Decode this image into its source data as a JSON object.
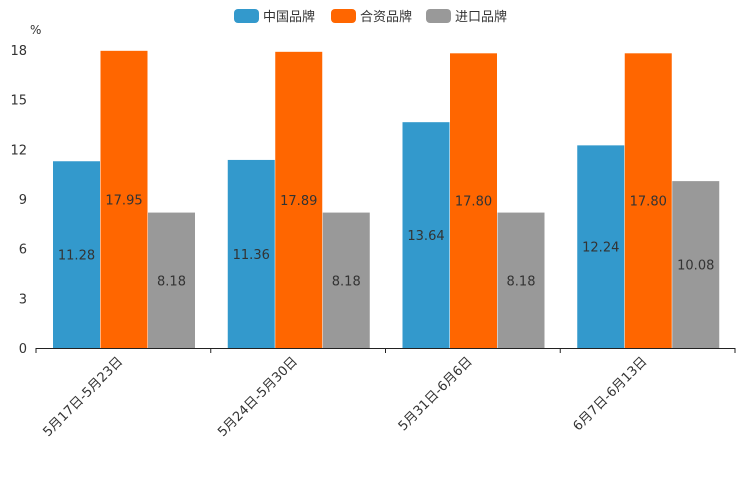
{
  "chart_data": {
    "type": "bar",
    "title": "",
    "ylabel": "%",
    "xlabel": "",
    "ylim": [
      0,
      18
    ],
    "yticks": [
      0,
      3,
      6,
      9,
      12,
      15,
      18
    ],
    "grid": false,
    "legend_position": "top-center",
    "categories": [
      "5月17日-5月23日",
      "5月24日-5月30日",
      "5月31日-6月6日",
      "6月7日-6月13日"
    ],
    "series": [
      {
        "name": "中国品牌",
        "color": "#3399cc",
        "values": [
          11.28,
          11.36,
          13.64,
          12.24
        ],
        "labels": [
          "11.28",
          "11.36",
          "13.64",
          "12.24"
        ]
      },
      {
        "name": "合资品牌",
        "color": "#ff6600",
        "values": [
          17.95,
          17.89,
          17.8,
          17.8
        ],
        "labels": [
          "17.95",
          "17.89",
          "17.80",
          "17.80"
        ]
      },
      {
        "name": "进口品牌",
        "color": "#999999",
        "values": [
          8.18,
          8.18,
          8.18,
          10.08
        ],
        "labels": [
          "8.18",
          "8.18",
          "8.18",
          "10.08"
        ]
      }
    ]
  }
}
